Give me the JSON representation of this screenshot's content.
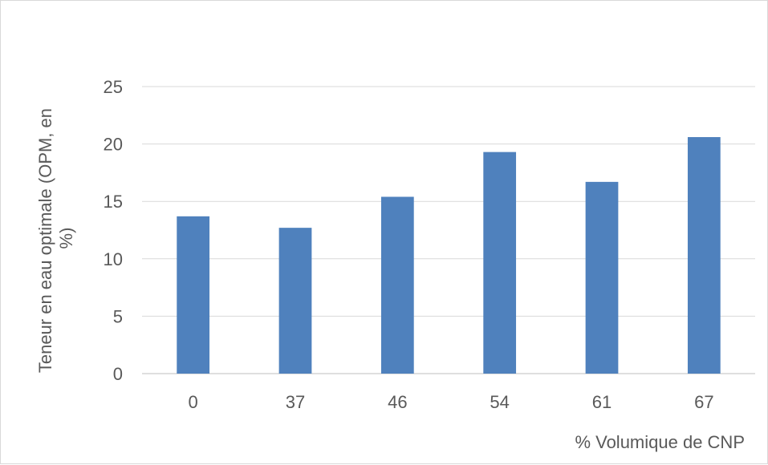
{
  "chart_data": {
    "type": "bar",
    "title": "",
    "xlabel": "% Volumique de CNP",
    "ylabel_lines": [
      "Teneur en eau optimale (OPM, en",
      "%)"
    ],
    "categories": [
      "0",
      "37",
      "46",
      "54",
      "61",
      "67"
    ],
    "values": [
      13.7,
      12.7,
      15.4,
      19.3,
      16.7,
      20.6
    ],
    "ylim": [
      0,
      25
    ],
    "yticks": [
      "0",
      "5",
      "10",
      "15",
      "20",
      "25"
    ],
    "grid": true,
    "legend": "none",
    "bar_color": "#4f81bd"
  }
}
